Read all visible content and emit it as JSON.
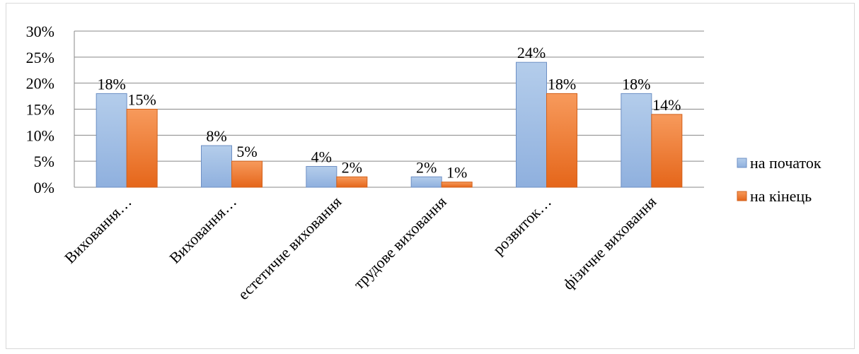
{
  "chart_data": {
    "type": "bar",
    "categories": [
      "Виховання…",
      "Виховання…",
      "естетичне виховання",
      "трудове виховання",
      "розвиток…",
      "фізичне виховання"
    ],
    "series": [
      {
        "name": "на початок",
        "values": [
          18,
          8,
          4,
          2,
          24,
          18
        ],
        "labels": [
          "18%",
          "8%",
          "4%",
          "2%",
          "24%",
          "18%"
        ]
      },
      {
        "name": "на кінець",
        "values": [
          15,
          5,
          2,
          1,
          18,
          14
        ],
        "labels": [
          "15%",
          "5%",
          "2%",
          "1%",
          "18%",
          "14%"
        ]
      }
    ],
    "yticks": [
      "0%",
      "5%",
      "10%",
      "15%",
      "20%",
      "25%",
      "30%"
    ],
    "ylim": [
      0,
      30
    ],
    "grid": true,
    "legend_position": "right",
    "colors": {
      "series_0_top": "#b4cdeb",
      "series_0_bottom": "#8fb0de",
      "series_0_edge": "#6d8fc4",
      "series_1_top": "#f79a5c",
      "series_1_bottom": "#e5661a",
      "series_1_edge": "#d2611c",
      "grid": "#888888"
    },
    "title": "",
    "xlabel": "",
    "ylabel": ""
  }
}
